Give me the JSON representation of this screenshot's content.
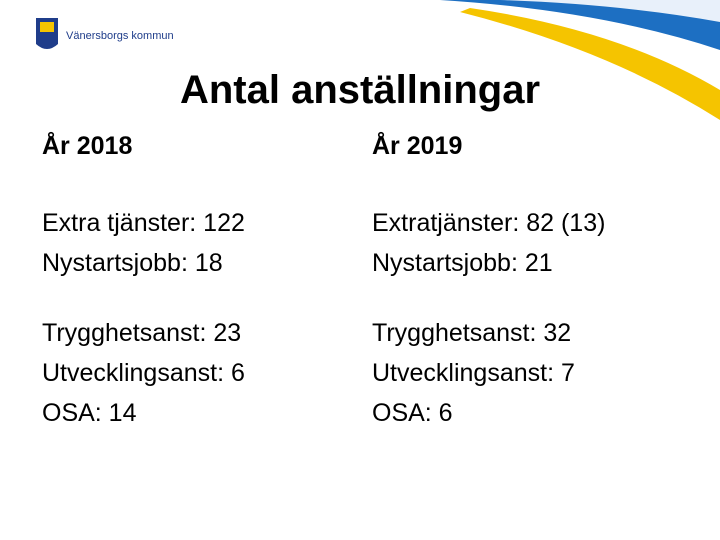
{
  "header": {
    "logo": "Vänersborgs kommun",
    "title": "Antal anställningar"
  },
  "columns": [
    {
      "heading": "År 2018",
      "groups": [
        [
          "Extra tjänster: 122",
          "Nystartsjobb: 18"
        ],
        [
          "Trygghetsanst: 23",
          "Utvecklingsanst: 6",
          "OSA: 14"
        ]
      ]
    },
    {
      "heading": "År 2019",
      "groups": [
        [
          "Extratjänster: 82 (13)",
          "Nystartsjobb: 21"
        ],
        [
          "Trygghetsanst: 32",
          "Utvecklingsanst: 7",
          "OSA: 6"
        ]
      ]
    }
  ]
}
